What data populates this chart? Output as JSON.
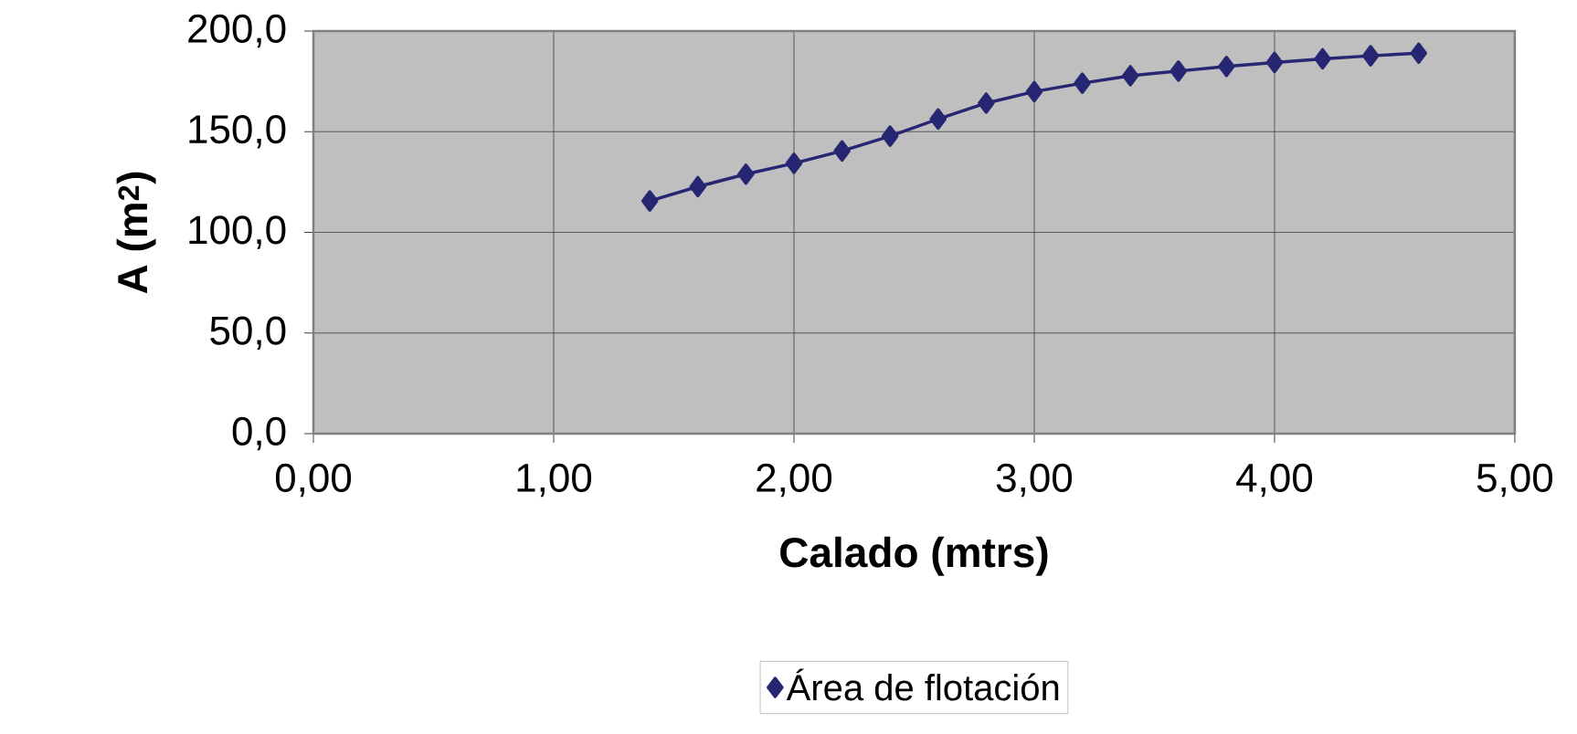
{
  "chart_data": {
    "type": "line",
    "xlabel": "Calado (mtrs)",
    "ylabel": "A (m$^{2}$)",
    "xlim": [
      0,
      5
    ],
    "ylim": [
      0,
      200
    ],
    "xticks": [
      {
        "value": 0,
        "label": "0,00"
      },
      {
        "value": 1,
        "label": "1,00"
      },
      {
        "value": 2,
        "label": "2,00"
      },
      {
        "value": 3,
        "label": "3,00"
      },
      {
        "value": 4,
        "label": "4,00"
      },
      {
        "value": 5,
        "label": "5,00"
      }
    ],
    "yticks": [
      {
        "value": 0,
        "label": "0,0"
      },
      {
        "value": 50,
        "label": "50,0"
      },
      {
        "value": 100,
        "label": "100,0"
      },
      {
        "value": 150,
        "label": "150,0"
      },
      {
        "value": 200,
        "label": "200,0"
      }
    ],
    "x": [
      1.4,
      1.6,
      1.8,
      2.0,
      2.2,
      2.4,
      2.6,
      2.8,
      3.0,
      3.2,
      3.4,
      3.6,
      3.8,
      4.0,
      4.2,
      4.4,
      4.6
    ],
    "series": [
      {
        "name": "Área de flotación",
        "color": "#262673",
        "values": [
          115.6,
          122.7,
          128.9,
          134.3,
          140.4,
          147.8,
          156.3,
          164.2,
          169.9,
          174.1,
          177.8,
          180.1,
          182.4,
          184.4,
          186.2,
          187.7,
          189.0
        ]
      }
    ],
    "grid": true,
    "legend": "bottom",
    "marker": "diamond",
    "line_style": "solid"
  }
}
